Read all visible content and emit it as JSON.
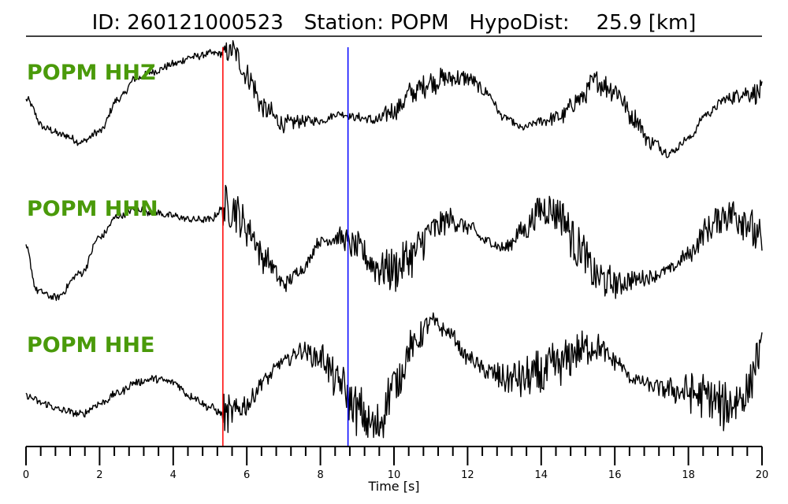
{
  "header": {
    "id_text": "ID: 260121000523",
    "station_text": "Station: POPM",
    "hypodist_text": "HypoDist:",
    "hypodist_value": "25.9 [km]"
  },
  "chart_data": {
    "type": "line",
    "title": "ID: 260121000523   Station: POPM   HypoDist:    25.9 [km]",
    "xlabel": "Time [s]",
    "ylabel": "",
    "xlim": [
      0,
      20
    ],
    "x_ticks": [
      0,
      2,
      4,
      6,
      8,
      10,
      12,
      14,
      16,
      18,
      20
    ],
    "minor_tick_step": 0.4,
    "grid": false,
    "markers": [
      {
        "time": 5.35,
        "color": "#ff0000"
      },
      {
        "time": 8.75,
        "color": "#0000ff"
      }
    ],
    "series": [
      {
        "name": "POPM HHZ",
        "x": [
          0,
          0.5,
          1.0,
          1.5,
          2.0,
          2.5,
          3.0,
          3.5,
          4.0,
          4.5,
          5.0,
          5.35,
          5.6,
          6.0,
          6.5,
          7.0,
          7.5,
          8.0,
          8.5,
          9.0,
          9.5,
          10.0,
          10.5,
          11.0,
          11.5,
          12.0,
          12.5,
          13.0,
          13.5,
          14.0,
          14.5,
          15.0,
          15.5,
          16.0,
          16.5,
          17.0,
          17.5,
          18.0,
          18.5,
          19.0,
          19.5,
          20.0
        ],
        "y": [
          0.3,
          -0.5,
          -0.7,
          -0.9,
          -0.6,
          0.3,
          0.9,
          1.1,
          1.3,
          1.5,
          1.6,
          1.6,
          1.7,
          1.0,
          0.0,
          -0.4,
          -0.3,
          -0.3,
          -0.1,
          -0.2,
          -0.3,
          0.0,
          0.5,
          0.8,
          0.9,
          0.9,
          0.5,
          -0.2,
          -0.5,
          -0.3,
          -0.2,
          0.3,
          0.8,
          0.6,
          -0.2,
          -0.9,
          -1.2,
          -0.8,
          -0.1,
          0.3,
          0.5,
          0.5
        ],
        "noise": 0.25
      },
      {
        "name": "POPM HHN",
        "x": [
          0,
          0.3,
          0.8,
          1.5,
          2.0,
          2.5,
          3.0,
          3.5,
          4.0,
          4.5,
          5.0,
          5.35,
          5.6,
          6.0,
          6.5,
          7.0,
          7.5,
          8.0,
          8.5,
          9.0,
          9.5,
          10.0,
          10.5,
          11.0,
          11.5,
          12.0,
          12.5,
          13.0,
          13.5,
          14.0,
          14.5,
          15.0,
          15.5,
          16.0,
          16.5,
          17.0,
          17.5,
          18.0,
          18.5,
          19.0,
          19.5,
          20.0
        ],
        "y": [
          0.0,
          -1.2,
          -1.4,
          -0.7,
          0.3,
          0.9,
          1.1,
          1.0,
          0.9,
          0.8,
          0.8,
          1.1,
          1.2,
          0.6,
          -0.3,
          -1.0,
          -0.6,
          0.2,
          0.3,
          0.0,
          -0.5,
          -0.6,
          -0.2,
          0.5,
          0.8,
          0.6,
          0.2,
          0.0,
          0.5,
          1.1,
          1.0,
          0.0,
          -0.8,
          -1.0,
          -0.9,
          -0.8,
          -0.6,
          -0.2,
          0.5,
          1.0,
          0.9,
          0.1
        ],
        "noise": 0.45
      },
      {
        "name": "POPM HHE",
        "x": [
          0,
          0.5,
          1.0,
          1.5,
          2.0,
          2.5,
          3.0,
          3.5,
          4.0,
          4.5,
          5.0,
          5.35,
          5.6,
          6.0,
          6.5,
          7.0,
          7.5,
          8.0,
          8.5,
          9.0,
          9.5,
          10.0,
          10.5,
          11.0,
          11.5,
          12.0,
          12.5,
          13.0,
          13.5,
          14.0,
          14.5,
          15.0,
          15.5,
          16.0,
          16.5,
          17.0,
          17.5,
          18.0,
          18.5,
          19.0,
          19.5,
          20.0
        ],
        "y": [
          -0.3,
          -0.5,
          -0.7,
          -0.8,
          -0.5,
          -0.2,
          0.1,
          0.2,
          0.1,
          -0.3,
          -0.6,
          -0.8,
          -0.8,
          -0.5,
          0.2,
          0.7,
          1.0,
          0.8,
          0.1,
          -0.7,
          -1.2,
          0.0,
          1.1,
          1.8,
          1.5,
          0.8,
          0.4,
          0.2,
          0.2,
          0.3,
          0.6,
          1.0,
          1.1,
          0.7,
          0.2,
          0.0,
          -0.1,
          -0.2,
          -0.3,
          -0.6,
          -0.3,
          1.0
        ],
        "noise": 0.5
      }
    ]
  }
}
